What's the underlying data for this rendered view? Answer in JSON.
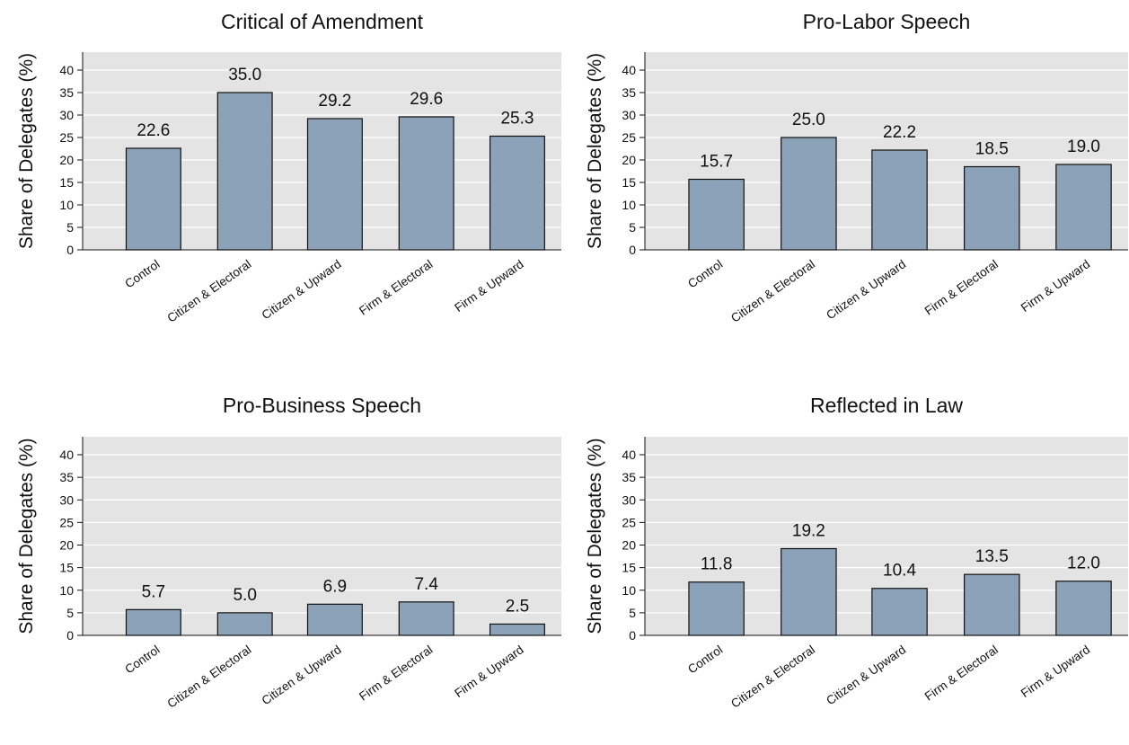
{
  "chart_data": [
    {
      "type": "bar",
      "title": "Critical of Amendment",
      "ylabel": "Share of Delegates (%)",
      "categories": [
        "Control",
        "Citizen & Electoral",
        "Citizen & Upward",
        "Firm & Electoral",
        "Firm & Upward"
      ],
      "values": [
        22.6,
        35.0,
        29.2,
        29.6,
        25.3
      ],
      "value_labels": [
        "22.6",
        "35.0",
        "29.2",
        "29.6",
        "25.3"
      ],
      "ylim": [
        0,
        40
      ],
      "yticks": [
        "0",
        "5",
        "10",
        "15",
        "20",
        "25",
        "30",
        "35",
        "40"
      ],
      "grid": true
    },
    {
      "type": "bar",
      "title": "Pro-Labor Speech",
      "ylabel": "Share of Delegates (%)",
      "categories": [
        "Control",
        "Citizen & Electoral",
        "Citizen & Upward",
        "Firm & Electoral",
        "Firm & Upward"
      ],
      "values": [
        15.7,
        25.0,
        22.2,
        18.5,
        19.0
      ],
      "value_labels": [
        "15.7",
        "25.0",
        "22.2",
        "18.5",
        "19.0"
      ],
      "ylim": [
        0,
        40
      ],
      "yticks": [
        "0",
        "5",
        "10",
        "15",
        "20",
        "25",
        "30",
        "35",
        "40"
      ],
      "grid": true
    },
    {
      "type": "bar",
      "title": "Pro-Business Speech",
      "ylabel": "Share of Delegates (%)",
      "categories": [
        "Control",
        "Citizen & Electoral",
        "Citizen & Upward",
        "Firm & Electoral",
        "Firm & Upward"
      ],
      "values": [
        5.7,
        5.0,
        6.9,
        7.4,
        2.5
      ],
      "value_labels": [
        "5.7",
        "5.0",
        "6.9",
        "7.4",
        "2.5"
      ],
      "ylim": [
        0,
        40
      ],
      "yticks": [
        "0",
        "5",
        "10",
        "15",
        "20",
        "25",
        "30",
        "35",
        "40"
      ],
      "grid": true
    },
    {
      "type": "bar",
      "title": "Reflected in Law",
      "ylabel": "Share of Delegates (%)",
      "categories": [
        "Control",
        "Citizen & Electoral",
        "Citizen & Upward",
        "Firm & Electoral",
        "Firm & Upward"
      ],
      "values": [
        11.8,
        19.2,
        10.4,
        13.5,
        12.0
      ],
      "value_labels": [
        "11.8",
        "19.2",
        "10.4",
        "13.5",
        "12.0"
      ],
      "ylim": [
        0,
        40
      ],
      "yticks": [
        "0",
        "5",
        "10",
        "15",
        "20",
        "25",
        "30",
        "35",
        "40"
      ],
      "grid": true
    }
  ],
  "colors": {
    "bar_fill": "#8ca2b8",
    "bar_stroke": "#111111",
    "panel_bg": "#e4e4e4",
    "grid": "#ffffff",
    "text": "#111111"
  }
}
